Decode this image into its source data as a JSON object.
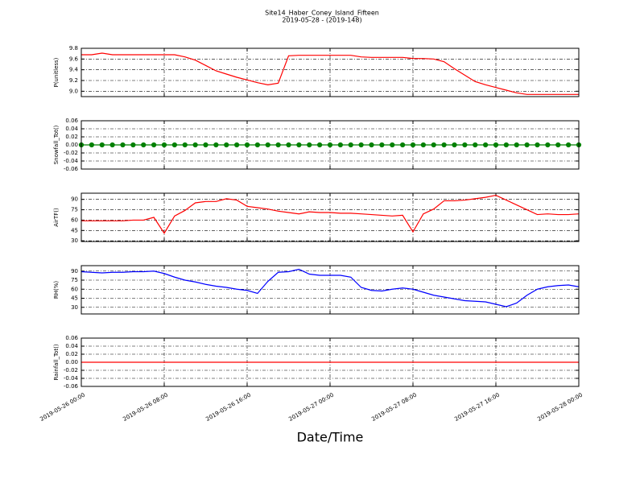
{
  "title": "Site14_Haber_Coney_Island_Fifteen",
  "subtitle": "2019-05-28 - (2019-148)",
  "xlabel": "Date/Time",
  "xlim": [
    "2019-05-26 00:00",
    "2019-05-28 00:00"
  ],
  "xticks": [
    "2019-05-26 00:00",
    "2019-05-26 08:00",
    "2019-05-26 16:00",
    "2019-05-27 00:00",
    "2019-05-27 08:00",
    "2019-05-27 16:00",
    "2019-05-28 00:00"
  ],
  "x": [
    "2019-05-26 00:00",
    "2019-05-26 01:00",
    "2019-05-26 02:00",
    "2019-05-26 03:00",
    "2019-05-26 04:00",
    "2019-05-26 05:00",
    "2019-05-26 06:00",
    "2019-05-26 07:00",
    "2019-05-26 08:00",
    "2019-05-26 09:00",
    "2019-05-26 10:00",
    "2019-05-26 11:00",
    "2019-05-26 12:00",
    "2019-05-26 13:00",
    "2019-05-26 14:00",
    "2019-05-26 15:00",
    "2019-05-26 16:00",
    "2019-05-26 17:00",
    "2019-05-26 18:00",
    "2019-05-26 19:00",
    "2019-05-26 20:00",
    "2019-05-26 21:00",
    "2019-05-26 22:00",
    "2019-05-26 23:00",
    "2019-05-27 00:00",
    "2019-05-27 01:00",
    "2019-05-27 02:00",
    "2019-05-27 03:00",
    "2019-05-27 04:00",
    "2019-05-27 05:00",
    "2019-05-27 06:00",
    "2019-05-27 07:00",
    "2019-05-27 08:00",
    "2019-05-27 09:00",
    "2019-05-27 10:00",
    "2019-05-27 11:00",
    "2019-05-27 12:00",
    "2019-05-27 13:00",
    "2019-05-27 14:00",
    "2019-05-27 15:00",
    "2019-05-27 16:00",
    "2019-05-27 17:00",
    "2019-05-27 18:00",
    "2019-05-27 19:00",
    "2019-05-27 20:00",
    "2019-05-27 21:00",
    "2019-05-27 22:00",
    "2019-05-27 23:00",
    "2019-05-28 00:00"
  ],
  "chart_data": [
    {
      "type": "line",
      "ylabel": "P(unitless)",
      "ylim": [
        8.9,
        9.8
      ],
      "yticks": [
        {
          "value": 9,
          "label": "9.0"
        },
        9.2,
        9.4,
        9.6,
        9.8
      ],
      "series": [
        {
          "color": "#ff0000",
          "marker": false,
          "values": [
            9.68,
            9.68,
            9.71,
            9.68,
            9.68,
            9.68,
            9.68,
            9.68,
            9.68,
            9.68,
            9.64,
            9.58,
            9.48,
            9.38,
            9.32,
            9.26,
            9.21,
            9.16,
            9.12,
            9.15,
            9.66,
            9.67,
            9.67,
            9.67,
            9.67,
            9.67,
            9.67,
            9.64,
            9.63,
            9.63,
            9.63,
            9.63,
            9.61,
            9.61,
            9.6,
            9.55,
            9.42,
            9.3,
            9.18,
            9.12,
            9.07,
            9.02,
            8.97,
            8.94,
            8.94,
            8.94,
            8.94,
            8.94,
            8.94
          ]
        }
      ]
    },
    {
      "type": "line",
      "ylabel": "Snowfall_Tot()",
      "ylim": [
        -0.06,
        0.06
      ],
      "yticks": [
        -0.06,
        -0.04,
        -0.02,
        {
          "value": 0,
          "label": "0.00"
        },
        0.02,
        0.04,
        0.06
      ],
      "series": [
        {
          "color": "#008000",
          "marker": true,
          "values": [
            0,
            0,
            0,
            0,
            0,
            0,
            0,
            0,
            0,
            0,
            0,
            0,
            0,
            0,
            0,
            0,
            0,
            0,
            0,
            0,
            0,
            0,
            0,
            0,
            0,
            0,
            0,
            0,
            0,
            0,
            0,
            0,
            0,
            0,
            0,
            0,
            0,
            0,
            0,
            0,
            0,
            0,
            0,
            0,
            0,
            0,
            0,
            0,
            0
          ]
        }
      ]
    },
    {
      "type": "line",
      "ylabel": "AirTF()",
      "ylim": [
        29,
        99
      ],
      "yticks": [
        30,
        45,
        60,
        75,
        90
      ],
      "series": [
        {
          "color": "#ff0000",
          "marker": false,
          "values": [
            59,
            59,
            59,
            59,
            59,
            60,
            60,
            64,
            41,
            66,
            74,
            85,
            87,
            87,
            91,
            89,
            80,
            78,
            76,
            73,
            71,
            69,
            72,
            71,
            71,
            70,
            70,
            69,
            68,
            67,
            66,
            67,
            43,
            69,
            76,
            88,
            88,
            89,
            91,
            93,
            96,
            89,
            82,
            75,
            68,
            69,
            68,
            68,
            69
          ]
        }
      ]
    },
    {
      "type": "line",
      "ylabel": "RH(%)",
      "ylim": [
        19,
        99
      ],
      "yticks": [
        30,
        45,
        60,
        75,
        90
      ],
      "series": [
        {
          "color": "#0000ff",
          "marker": false,
          "values": [
            89,
            88,
            87,
            88,
            88,
            89,
            89,
            90,
            86,
            80,
            75,
            72,
            68,
            65,
            63,
            60,
            58,
            53,
            73,
            88,
            89,
            93,
            85,
            83,
            83,
            83,
            80,
            63,
            58,
            57,
            60,
            62,
            60,
            55,
            50,
            47,
            44,
            41,
            40,
            39,
            35,
            31,
            37,
            50,
            60,
            64,
            66,
            67,
            64
          ]
        }
      ]
    },
    {
      "type": "line",
      "ylabel": "Rainfall_Tot()",
      "ylim": [
        -0.06,
        0.06
      ],
      "yticks": [
        -0.06,
        -0.04,
        -0.02,
        {
          "value": 0,
          "label": "0.00"
        },
        0.02,
        0.04,
        0.06
      ],
      "series": [
        {
          "color": "#ff0000",
          "marker": false,
          "values": [
            0,
            0,
            0,
            0,
            0,
            0,
            0,
            0,
            0,
            0,
            0,
            0,
            0,
            0,
            0,
            0,
            0,
            0,
            0,
            0,
            0,
            0,
            0,
            0,
            0,
            0,
            0,
            0,
            0,
            0,
            0,
            0,
            0,
            0,
            0,
            0,
            0,
            0,
            0,
            0,
            0,
            0,
            0,
            0,
            0,
            0,
            0,
            0,
            0
          ]
        }
      ]
    }
  ]
}
